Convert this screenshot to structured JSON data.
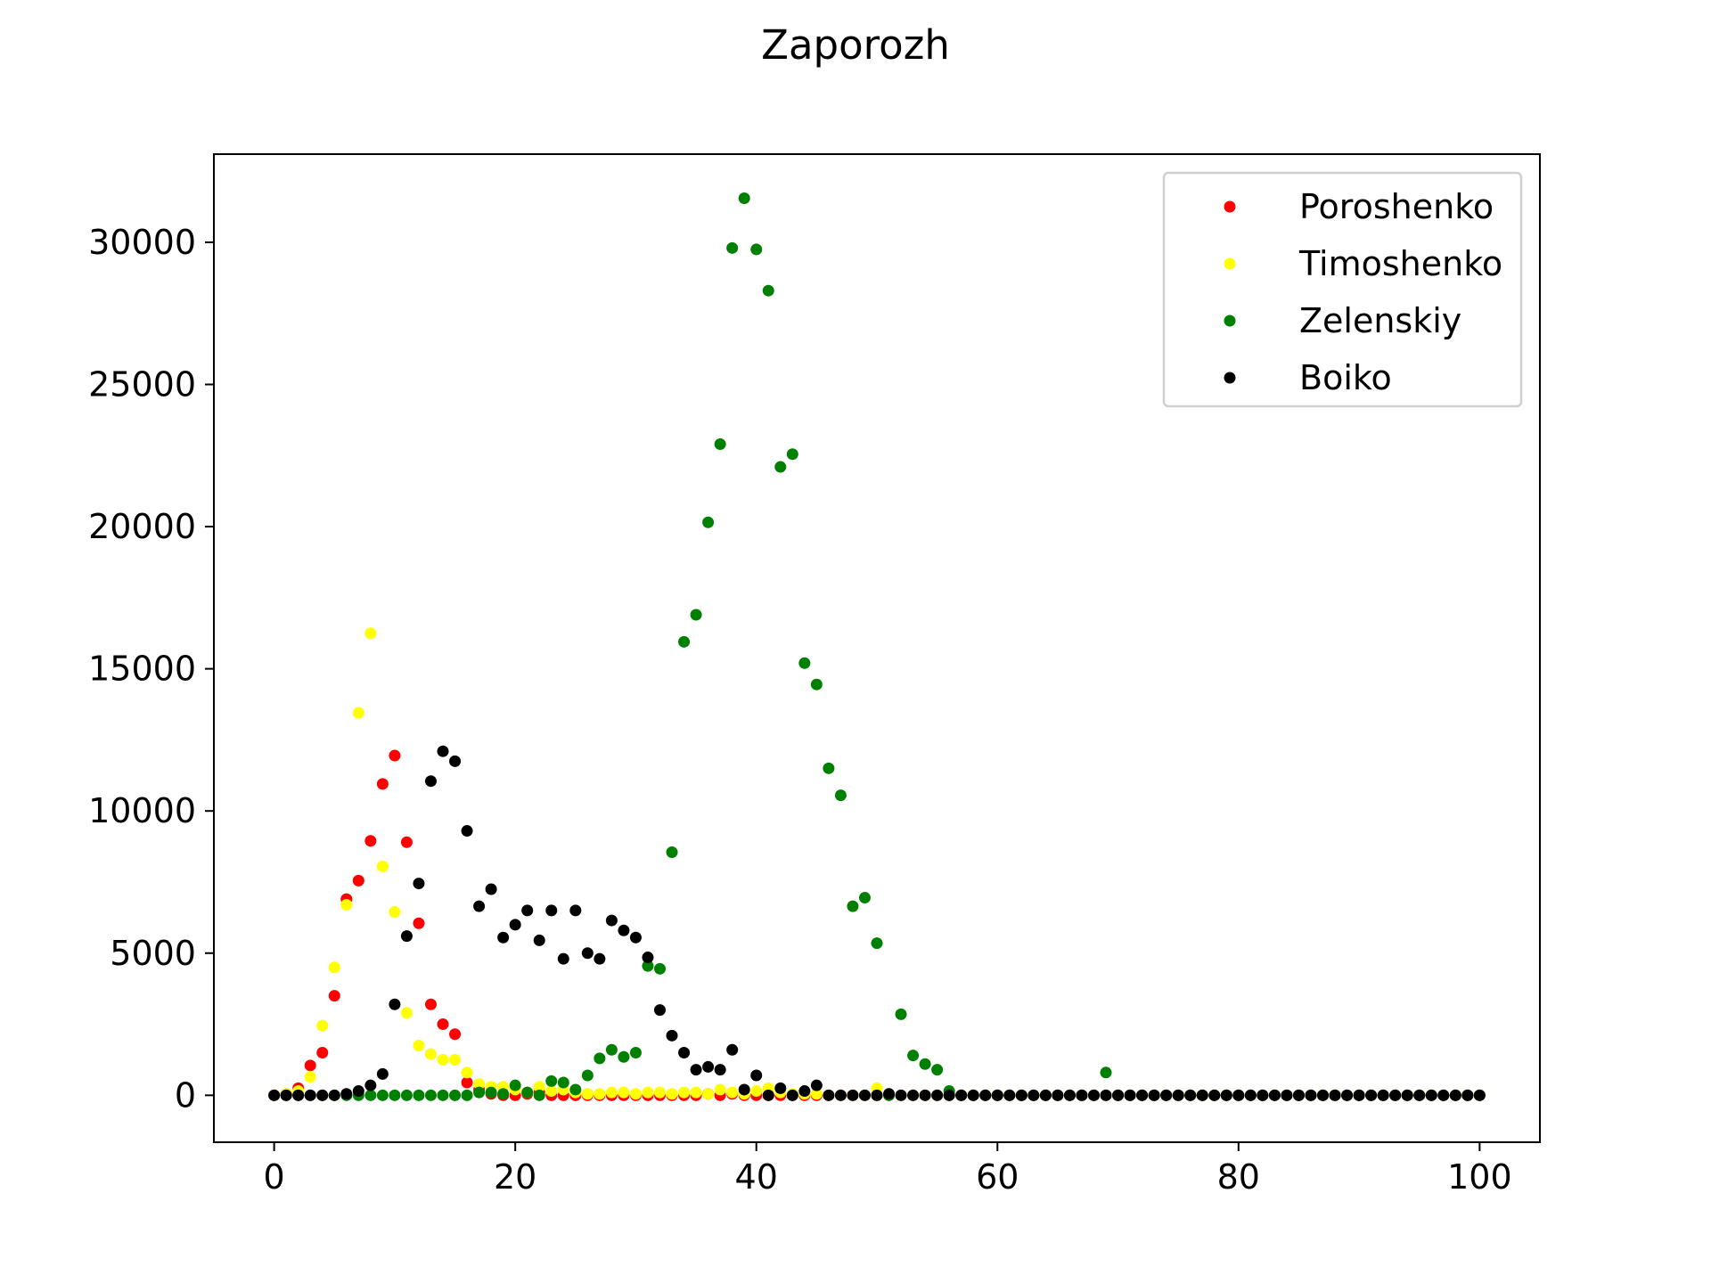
{
  "chart_data": {
    "type": "scatter",
    "title": "Zaporozh",
    "xlabel": "",
    "ylabel": "",
    "xlim": [
      -5,
      105
    ],
    "ylim": [
      -1650,
      33100
    ],
    "xticks": [
      0,
      20,
      40,
      60,
      80,
      100
    ],
    "yticks": [
      0,
      5000,
      10000,
      15000,
      20000,
      25000,
      30000
    ],
    "grid": false,
    "legend_position": "top-right",
    "series": [
      {
        "name": "Poroshenko",
        "color": "#ff0000",
        "x": [
          0,
          1,
          2,
          3,
          4,
          5,
          6,
          7,
          8,
          9,
          10,
          11,
          12,
          13,
          14,
          15,
          16,
          17,
          18,
          19,
          20,
          21,
          22,
          23,
          24,
          25,
          26,
          27,
          28,
          29,
          30,
          31,
          32,
          33,
          34,
          35,
          36,
          37,
          38,
          39,
          40,
          41,
          42,
          43,
          44,
          45,
          46,
          47,
          48,
          49,
          50,
          51,
          52,
          53,
          54,
          55,
          56,
          57,
          58,
          59,
          60,
          61,
          62,
          63,
          64,
          65,
          66,
          67,
          68,
          69,
          70,
          71,
          72,
          73,
          74,
          75,
          76,
          77,
          78,
          79,
          80,
          81,
          82,
          83,
          84,
          85,
          86,
          87,
          88,
          89,
          90,
          91,
          92,
          93,
          94,
          95,
          96,
          97,
          98,
          99,
          100
        ],
        "y": [
          0,
          50,
          250,
          1050,
          1500,
          3500,
          6900,
          7550,
          8950,
          10950,
          11950,
          8900,
          6050,
          3200,
          2500,
          2150,
          450,
          200,
          50,
          0,
          0,
          50,
          100,
          0,
          0,
          0,
          0,
          0,
          0,
          0,
          0,
          0,
          0,
          0,
          0,
          0,
          50,
          0,
          50,
          0,
          0,
          0,
          0,
          0,
          0,
          0,
          0,
          0,
          0,
          0,
          0,
          0,
          0,
          0,
          0,
          0,
          0,
          0,
          0,
          0,
          0,
          0,
          0,
          0,
          0,
          0,
          0,
          0,
          0,
          0,
          0,
          0,
          0,
          0,
          0,
          0,
          0,
          0,
          0,
          0,
          0,
          0,
          0,
          0,
          0,
          0,
          0,
          0,
          0,
          0,
          0,
          0,
          0,
          0,
          0,
          0,
          0,
          0,
          0,
          0,
          0
        ]
      },
      {
        "name": "Timoshenko",
        "color": "#ffff00",
        "x": [
          0,
          1,
          2,
          3,
          4,
          5,
          6,
          7,
          8,
          9,
          10,
          11,
          12,
          13,
          14,
          15,
          16,
          17,
          18,
          19,
          20,
          21,
          22,
          23,
          24,
          25,
          26,
          27,
          28,
          29,
          30,
          31,
          32,
          33,
          34,
          35,
          36,
          37,
          38,
          39,
          40,
          41,
          42,
          43,
          44,
          45,
          46,
          47,
          48,
          49,
          50,
          51,
          52,
          53,
          54,
          55,
          56,
          57,
          58,
          59,
          60,
          61,
          62,
          63,
          64,
          65,
          66,
          67,
          68,
          69,
          70,
          71,
          72,
          73,
          74,
          75,
          76,
          77,
          78,
          79,
          80,
          81,
          82,
          83,
          84,
          85,
          86,
          87,
          88,
          89,
          90,
          91,
          92,
          93,
          94,
          95,
          96,
          97,
          98,
          99,
          100
        ],
        "y": [
          0,
          50,
          150,
          650,
          2450,
          4500,
          6700,
          13450,
          16250,
          8050,
          6450,
          2900,
          1750,
          1450,
          1250,
          1250,
          800,
          400,
          300,
          300,
          200,
          100,
          300,
          150,
          200,
          100,
          50,
          50,
          100,
          100,
          50,
          100,
          100,
          50,
          100,
          100,
          50,
          200,
          100,
          50,
          150,
          250,
          100,
          50,
          50,
          50,
          0,
          0,
          0,
          0,
          250,
          0,
          0,
          0,
          0,
          0,
          0,
          0,
          0,
          0,
          0,
          0,
          0,
          0,
          0,
          0,
          0,
          0,
          0,
          0,
          0,
          0,
          0,
          0,
          0,
          0,
          0,
          0,
          0,
          0,
          0,
          0,
          0,
          0,
          0,
          0,
          0,
          0,
          0,
          0,
          0,
          0,
          0,
          0,
          0,
          0,
          0,
          0,
          0,
          0,
          0
        ]
      },
      {
        "name": "Zelenskiy",
        "color": "#008000",
        "x": [
          0,
          1,
          2,
          3,
          4,
          5,
          6,
          7,
          8,
          9,
          10,
          11,
          12,
          13,
          14,
          15,
          16,
          17,
          18,
          19,
          20,
          21,
          22,
          23,
          24,
          25,
          26,
          27,
          28,
          29,
          30,
          31,
          32,
          33,
          34,
          35,
          36,
          37,
          38,
          39,
          40,
          41,
          42,
          43,
          44,
          45,
          46,
          47,
          48,
          49,
          50,
          51,
          52,
          53,
          54,
          55,
          56,
          57,
          58,
          59,
          60,
          61,
          62,
          63,
          64,
          65,
          66,
          67,
          68,
          69,
          70,
          71,
          72,
          73,
          74,
          75,
          76,
          77,
          78,
          79,
          80,
          81,
          82,
          83,
          84,
          85,
          86,
          87,
          88,
          89,
          90,
          91,
          92,
          93,
          94,
          95,
          96,
          97,
          98,
          99,
          100
        ],
        "y": [
          0,
          0,
          0,
          0,
          0,
          0,
          0,
          0,
          0,
          0,
          0,
          0,
          0,
          0,
          0,
          0,
          0,
          100,
          100,
          50,
          350,
          100,
          0,
          500,
          450,
          200,
          700,
          1300,
          1600,
          1350,
          1500,
          4550,
          4450,
          8550,
          15950,
          16900,
          20150,
          22900,
          29800,
          31550,
          29750,
          28300,
          22100,
          22550,
          15200,
          14450,
          11500,
          10550,
          6650,
          6950,
          5350,
          0,
          2850,
          1400,
          1100,
          900,
          150,
          0,
          0,
          0,
          0,
          0,
          0,
          0,
          0,
          0,
          0,
          0,
          0,
          800,
          0,
          0,
          0,
          0,
          0,
          0,
          0,
          0,
          0,
          0,
          0,
          0,
          0,
          0,
          0,
          0,
          0,
          0,
          0,
          0,
          0,
          0,
          0,
          0,
          0,
          0,
          0,
          0,
          0,
          0,
          0
        ]
      },
      {
        "name": "Boiko",
        "color": "#000000",
        "x": [
          0,
          1,
          2,
          3,
          4,
          5,
          6,
          7,
          8,
          9,
          10,
          11,
          12,
          13,
          14,
          15,
          16,
          17,
          18,
          19,
          20,
          21,
          22,
          23,
          24,
          25,
          26,
          27,
          28,
          29,
          30,
          31,
          32,
          33,
          34,
          35,
          36,
          37,
          38,
          39,
          40,
          41,
          42,
          43,
          44,
          45,
          46,
          47,
          48,
          49,
          50,
          51,
          52,
          53,
          54,
          55,
          56,
          57,
          58,
          59,
          60,
          61,
          62,
          63,
          64,
          65,
          66,
          67,
          68,
          69,
          70,
          71,
          72,
          73,
          74,
          75,
          76,
          77,
          78,
          79,
          80,
          81,
          82,
          83,
          84,
          85,
          86,
          87,
          88,
          89,
          90,
          91,
          92,
          93,
          94,
          95,
          96,
          97,
          98,
          99,
          100
        ],
        "y": [
          0,
          0,
          0,
          0,
          0,
          0,
          50,
          150,
          350,
          750,
          3200,
          5600,
          7450,
          11050,
          12100,
          11750,
          9300,
          6650,
          7250,
          5550,
          6000,
          6500,
          5450,
          6500,
          4800,
          6500,
          5000,
          4800,
          6150,
          5800,
          5550,
          4850,
          3000,
          2100,
          1500,
          900,
          1000,
          900,
          1600,
          200,
          700,
          0,
          250,
          0,
          150,
          350,
          0,
          0,
          0,
          0,
          0,
          50,
          0,
          0,
          0,
          0,
          0,
          0,
          0,
          0,
          0,
          0,
          0,
          0,
          0,
          0,
          0,
          0,
          0,
          0,
          0,
          0,
          0,
          0,
          0,
          0,
          0,
          0,
          0,
          0,
          0,
          0,
          0,
          0,
          0,
          0,
          0,
          0,
          0,
          0,
          0,
          0,
          0,
          0,
          0,
          0,
          0,
          0,
          0,
          0,
          0
        ]
      }
    ]
  }
}
